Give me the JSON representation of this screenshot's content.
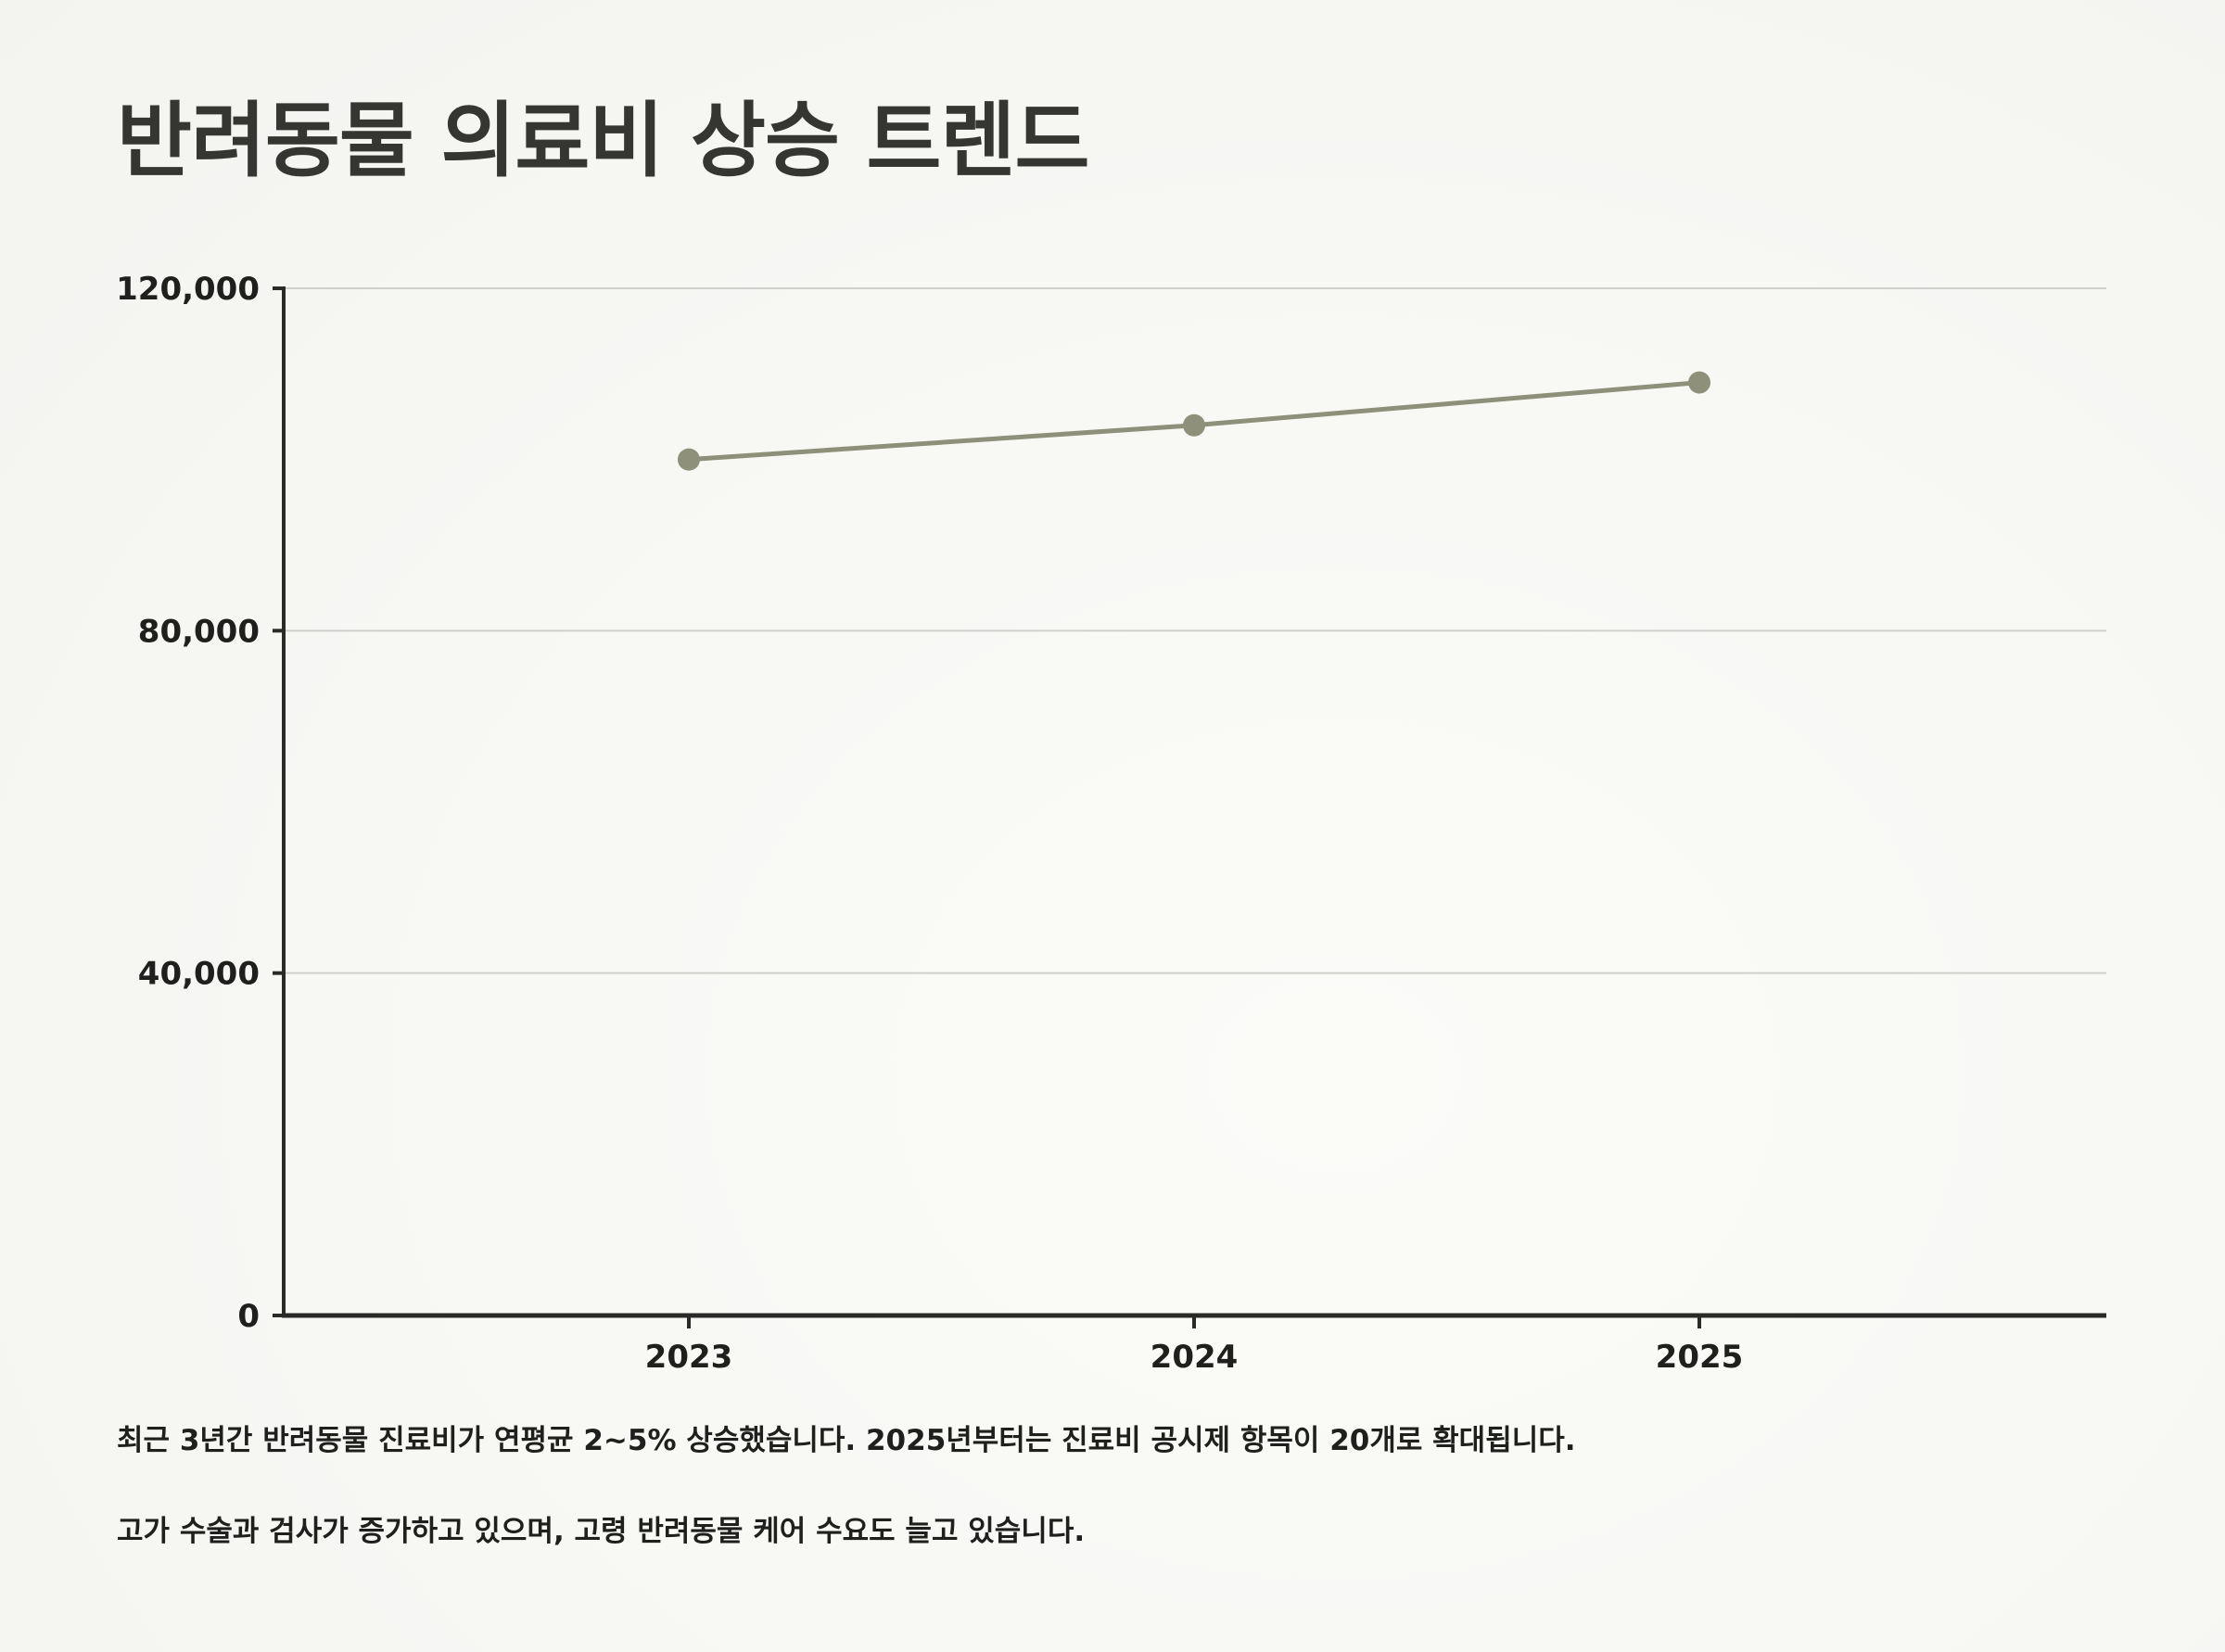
{
  "title": "반려동물 의료비 상승 트렌드",
  "chart_data": {
    "type": "line",
    "x": [
      "2023",
      "2024",
      "2025"
    ],
    "series": [
      {
        "values": [
          100000,
          104000,
          109000
        ]
      }
    ],
    "ylim": [
      0,
      120000
    ],
    "y_ticks": [
      "0",
      "40,000",
      "80,000",
      "120,000"
    ],
    "y_tick_values": [
      0,
      40000,
      80000,
      120000
    ],
    "grid": true,
    "line_color": "#8e907a",
    "marker_color": "#8e907a"
  },
  "captions": [
    "최근 3년간 반려동물 진료비가 연평균 2~5% 상승했습니다. 2025년부터는 진료비 공시제 항목이 20개로 확대됩니다.",
    "고가 수술과 검사가 증가하고 있으며, 고령 반려동물 케어 수요도 늘고 있습니다."
  ]
}
